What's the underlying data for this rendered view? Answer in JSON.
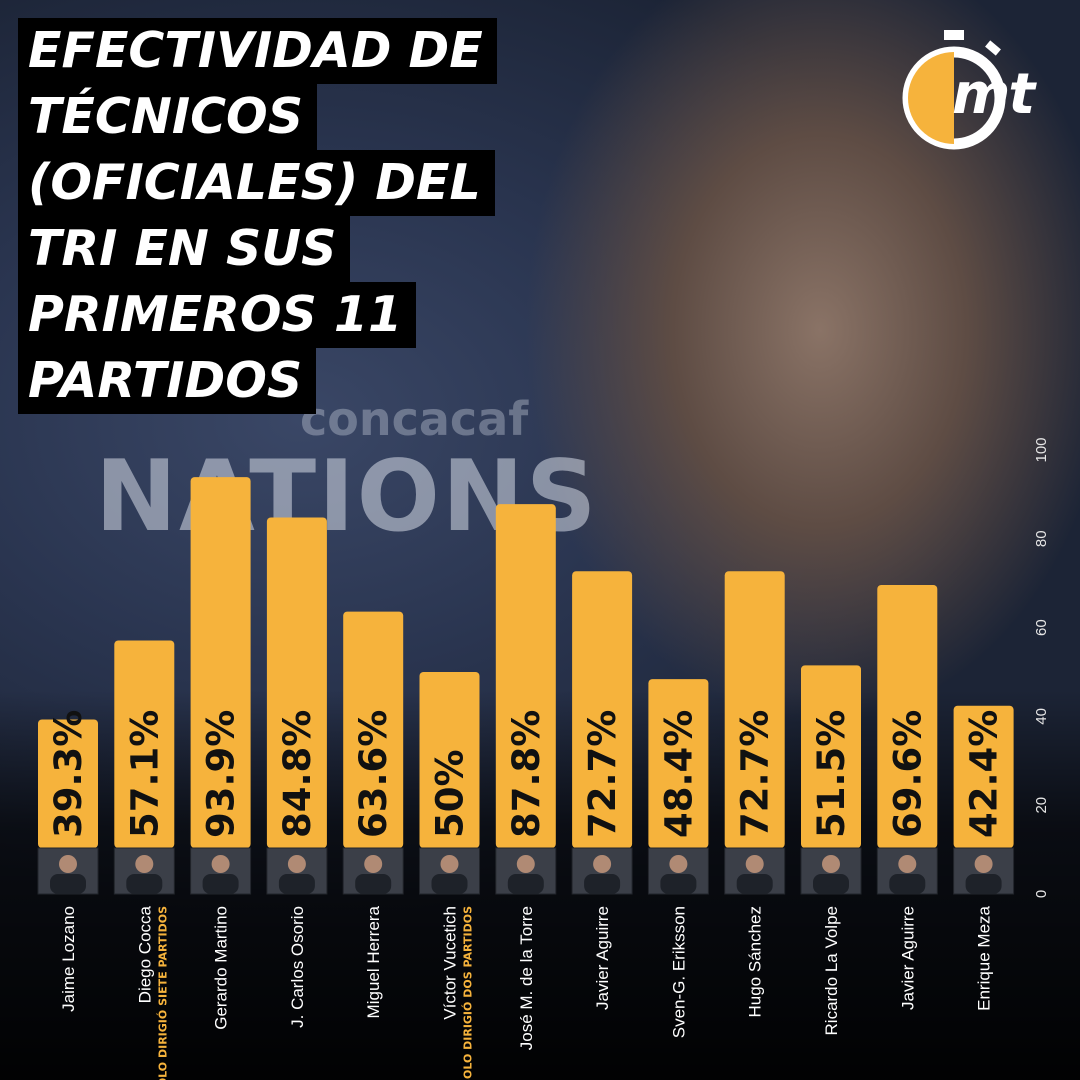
{
  "title_lines": [
    "EFECTIVIDAD DE",
    "TÉCNICOS",
    "(OFICIALES) DEL",
    "TRI EN SUS",
    "PRIMEROS 11",
    "PARTIDOS"
  ],
  "logo_text": "mt",
  "background_text": {
    "main": "NATIONS",
    "sub": "concacaf"
  },
  "colors": {
    "bar": "#f6b33c",
    "title_bg": "#000000",
    "note": "#f6b33c"
  },
  "chart_data": {
    "type": "bar",
    "orientation": "vertical",
    "ylim": [
      0,
      100
    ],
    "yticks": [
      0,
      20,
      40,
      60,
      80,
      100
    ],
    "categories": [
      "Jaime Lozano",
      "Diego Cocca",
      "Gerardo Martino",
      "J. Carlos Osorio",
      "Miguel Herrera",
      "Víctor Vucetich",
      "José M. de la Torre",
      "Javier Aguirre",
      "Sven-G. Eriksson",
      "Hugo Sánchez",
      "Ricardo La Volpe",
      "Javier Aguirre",
      "Enrique Meza"
    ],
    "values": [
      39.3,
      57.1,
      93.9,
      84.8,
      63.6,
      50,
      87.8,
      72.7,
      48.4,
      72.7,
      51.5,
      69.6,
      42.4
    ],
    "value_labels": [
      "39.3%",
      "57.1%",
      "93.9%",
      "84.8%",
      "63.6%",
      "50%",
      "87.8%",
      "72.7%",
      "48.4%",
      "72.7%",
      "51.5%",
      "69.6%",
      "42.4%"
    ],
    "notes": [
      "",
      "*SOLO DIRIGIÓ SIETE PARTIDOS",
      "",
      "",
      "",
      "*SOLO DIRIGIÓ DOS PARTIDOS",
      "",
      "",
      "",
      "",
      "",
      "",
      ""
    ]
  }
}
